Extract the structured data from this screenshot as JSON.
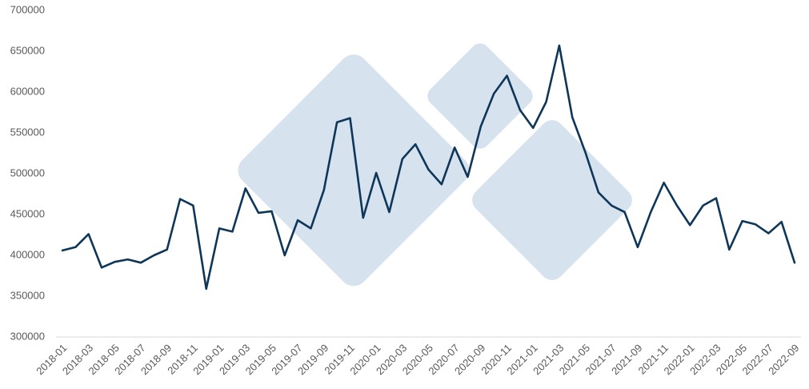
{
  "chart_data": {
    "type": "line",
    "categories": [
      "2018-01",
      null,
      "2018-03",
      null,
      "2018-05",
      null,
      "2018-07",
      null,
      "2018-09",
      null,
      "2018-11",
      null,
      "2019-01",
      null,
      "2019-03",
      null,
      "2019-05",
      null,
      "2019-07",
      null,
      "2019-09",
      null,
      "2019-11",
      null,
      "2020-01",
      null,
      "2020-03",
      null,
      "2020-05",
      null,
      "2020-07",
      null,
      "2020-09",
      null,
      "2020-11",
      null,
      "2021-01",
      null,
      "2021-03",
      null,
      "2021-05",
      null,
      "2021-07",
      null,
      "2021-09",
      null,
      "2021-11",
      null,
      "2022-01",
      null,
      "2022-03",
      null,
      "2022-05",
      null,
      "2022-07",
      null,
      "2022-09"
    ],
    "values": [
      406000,
      410000,
      426000,
      385000,
      392000,
      395000,
      391000,
      400000,
      407000,
      469000,
      461000,
      359000,
      433000,
      429000,
      482000,
      452000,
      454000,
      400000,
      443000,
      433000,
      480000,
      563000,
      568000,
      446000,
      501000,
      453000,
      518000,
      536000,
      505000,
      487000,
      532000,
      496000,
      558000,
      598000,
      620000,
      578000,
      556000,
      588000,
      657000,
      569000,
      526000,
      477000,
      461000,
      453000,
      410000,
      453000,
      489000,
      461000,
      437000,
      461000,
      470000,
      407000,
      442000,
      438000,
      427000,
      441000,
      391000
    ],
    "color": "#0e3659",
    "ylim": [
      300000,
      700000
    ],
    "yticks": [
      300000,
      350000,
      400000,
      450000,
      500000,
      550000,
      600000,
      650000,
      700000
    ],
    "grid": false
  }
}
